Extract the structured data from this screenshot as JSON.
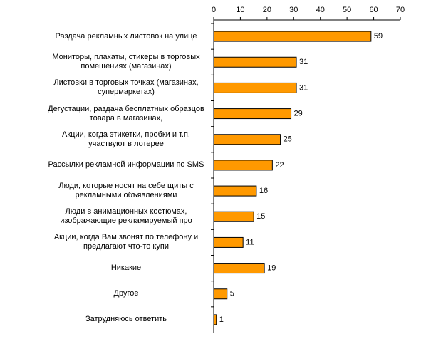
{
  "chart_data": {
    "type": "bar",
    "orientation": "horizontal",
    "categories": [
      "Раздача рекламных листовок на улице",
      "Мониторы, плакаты, стикеры в торговых помещениях (магазинах)",
      "Листовки в торговых точках (магазинах, супермаркетах)",
      "Дегустации, раздача бесплатных образцов товара в магазинах,",
      "Акции, когда этикетки, пробки и т.п. участвуют в лотерее",
      "Рассылки рекламной информации по SMS",
      "Люди, которые носят на себе щиты с рекламными объявлениями",
      "Люди в анимационных костюмах, изображающие рекламируемый про",
      "Акции, когда Вам звонят по телефону и предлагают что-то купи",
      "Никакие",
      "Другое",
      "Затрудняюсь ответить"
    ],
    "values": [
      59,
      31,
      31,
      29,
      25,
      22,
      16,
      15,
      11,
      19,
      5,
      1
    ],
    "color": "#ff9900",
    "xlim": [
      0,
      70
    ],
    "xticks": [
      0,
      10,
      20,
      30,
      40,
      50,
      60,
      70
    ],
    "grid": false
  }
}
